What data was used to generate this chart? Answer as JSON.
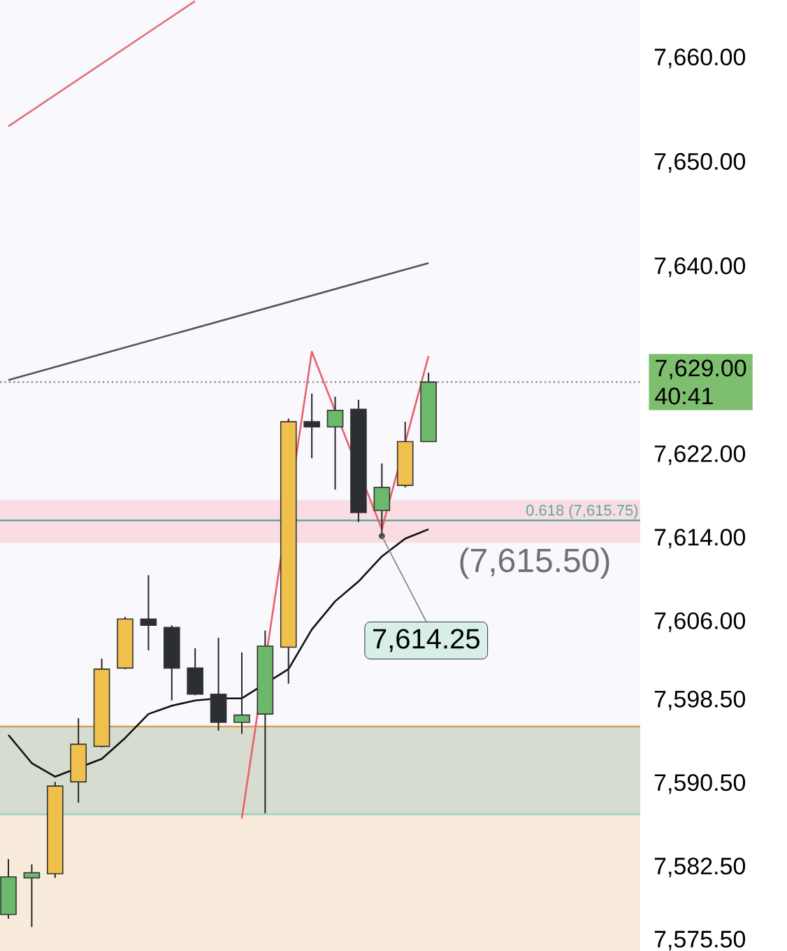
{
  "chart_data": {
    "type": "candlestick",
    "categories": [
      null,
      null,
      null,
      null,
      null,
      null,
      null,
      null,
      null,
      null,
      null,
      null,
      null,
      null,
      null,
      null,
      null,
      null,
      null
    ],
    "ohlc": [
      [
        7578.0,
        7583.3,
        7577.6,
        7581.6
      ],
      [
        7581.5,
        7582.8,
        7576.8,
        7582.0
      ],
      [
        7581.9,
        7590.7,
        7581.5,
        7590.3
      ],
      [
        7590.7,
        7596.8,
        7588.7,
        7594.3
      ],
      [
        7594.1,
        7602.5,
        7594.0,
        7601.5
      ],
      [
        7601.6,
        7606.5,
        7601.5,
        7606.3
      ],
      [
        7606.3,
        7610.5,
        7603.3,
        7605.7
      ],
      [
        7605.5,
        7605.7,
        7598.5,
        7601.6
      ],
      [
        7601.6,
        7603.5,
        7599.0,
        7599.1
      ],
      [
        7599.1,
        7604.5,
        7595.6,
        7596.4
      ],
      [
        7596.4,
        7603.1,
        7595.3,
        7597.1
      ],
      [
        7597.2,
        7605.2,
        7587.7,
        7603.7
      ],
      [
        7603.6,
        7625.5,
        7600.1,
        7625.2
      ],
      [
        7625.2,
        7627.9,
        7621.7,
        7624.7
      ],
      [
        7624.7,
        7627.6,
        7618.7,
        7626.3
      ],
      [
        7626.4,
        7627.3,
        7615.6,
        7616.5
      ],
      [
        7616.7,
        7621.2,
        7614.25,
        7618.9
      ],
      [
        7619.1,
        7625.2,
        7618.9,
        7623.3
      ],
      [
        7623.3,
        7629.9,
        7623.3,
        7629.0
      ]
    ],
    "colors": [
      "#6cb96c",
      "#6cb96c",
      "#f0c04c",
      "#f0c04c",
      "#f0c04c",
      "#f0c04c",
      "#2b2e33",
      "#2b2e33",
      "#2b2e33",
      "#2b2e33",
      "#6cb96c",
      "#6cb96c",
      "#f0c04c",
      "#2b2e33",
      "#6cb96c",
      "#2b2e33",
      "#6cb96c",
      "#f0c04c",
      "#6cb96c"
    ],
    "series": [
      {
        "type": "line",
        "color": "#111111",
        "values": [
          7595.2,
          7592.5,
          7591.2,
          null,
          7592.9,
          7594.9,
          7597.2,
          7598.0,
          7598.5,
          7598.7,
          7598.7,
          null,
          7601.5,
          7605.3,
          7608.0,
          7609.9,
          7612.3,
          7614.0,
          7614.9
        ]
      },
      {
        "type": "line",
        "color": "#555555",
        "values": [
          7629.2,
          null,
          null,
          null,
          null,
          null,
          null,
          null,
          null,
          null,
          null,
          null,
          null,
          null,
          null,
          null,
          null,
          null,
          7640.4
        ]
      },
      {
        "type": "line",
        "color": "#e0707c",
        "values": [
          7653.5,
          null,
          null,
          null,
          null,
          null,
          null,
          null,
          7665.5,
          null,
          null,
          null,
          null,
          null,
          null,
          null,
          null,
          null,
          null
        ]
      },
      {
        "type": "line",
        "color": "#e8606c",
        "values": [
          null,
          null,
          null,
          null,
          null,
          null,
          null,
          null,
          null,
          null,
          7587.2,
          null,
          null,
          7631.9,
          null,
          null,
          7614.9,
          null,
          7631.5
        ]
      }
    ],
    "ylim": [
      7574.5,
      7665.6
    ],
    "yticks": [
      {
        "value": 7660,
        "label": "7,660.00"
      },
      {
        "value": 7650,
        "label": "7,650.00"
      },
      {
        "value": 7640,
        "label": "7,640.00"
      },
      {
        "value": 7622,
        "label": "7,622.00"
      },
      {
        "value": 7614,
        "label": "7,614.00"
      },
      {
        "value": 7606,
        "label": "7,606.00"
      },
      {
        "value": 7598.5,
        "label": "7,598.50"
      },
      {
        "value": 7590.5,
        "label": "7,590.50"
      },
      {
        "value": 7582.5,
        "label": "7,582.50"
      },
      {
        "value": 7575.5,
        "label": "7,575.50"
      }
    ],
    "tick_labels": "y",
    "bands": [
      {
        "axis": "y",
        "from": 7613.6,
        "to": 7617.7,
        "color": "#fadde3"
      },
      {
        "axis": "y",
        "from": 7587.6,
        "to": 7596.0,
        "color": "#d6ddd0"
      },
      {
        "axis": "y",
        "from": 7574.5,
        "to": 7587.6,
        "color": "#f9ebdc"
      }
    ],
    "ref_lines": [
      {
        "axis": "y",
        "value": 7596.0,
        "color": "#d9a050"
      },
      {
        "axis": "y",
        "value": 7587.6,
        "color": "#9fcfc0"
      },
      {
        "axis": "y",
        "value": 7615.75,
        "label": "0.618 (7,615.75)",
        "color": "#5fa8a0"
      },
      {
        "axis": "y",
        "value": 7629.0,
        "label": "7,629.00",
        "color": "#888888",
        "line_style": "dotted"
      }
    ],
    "annotations": [
      "7,614.25",
      "(7,615.50)",
      "40:41"
    ]
  }
}
